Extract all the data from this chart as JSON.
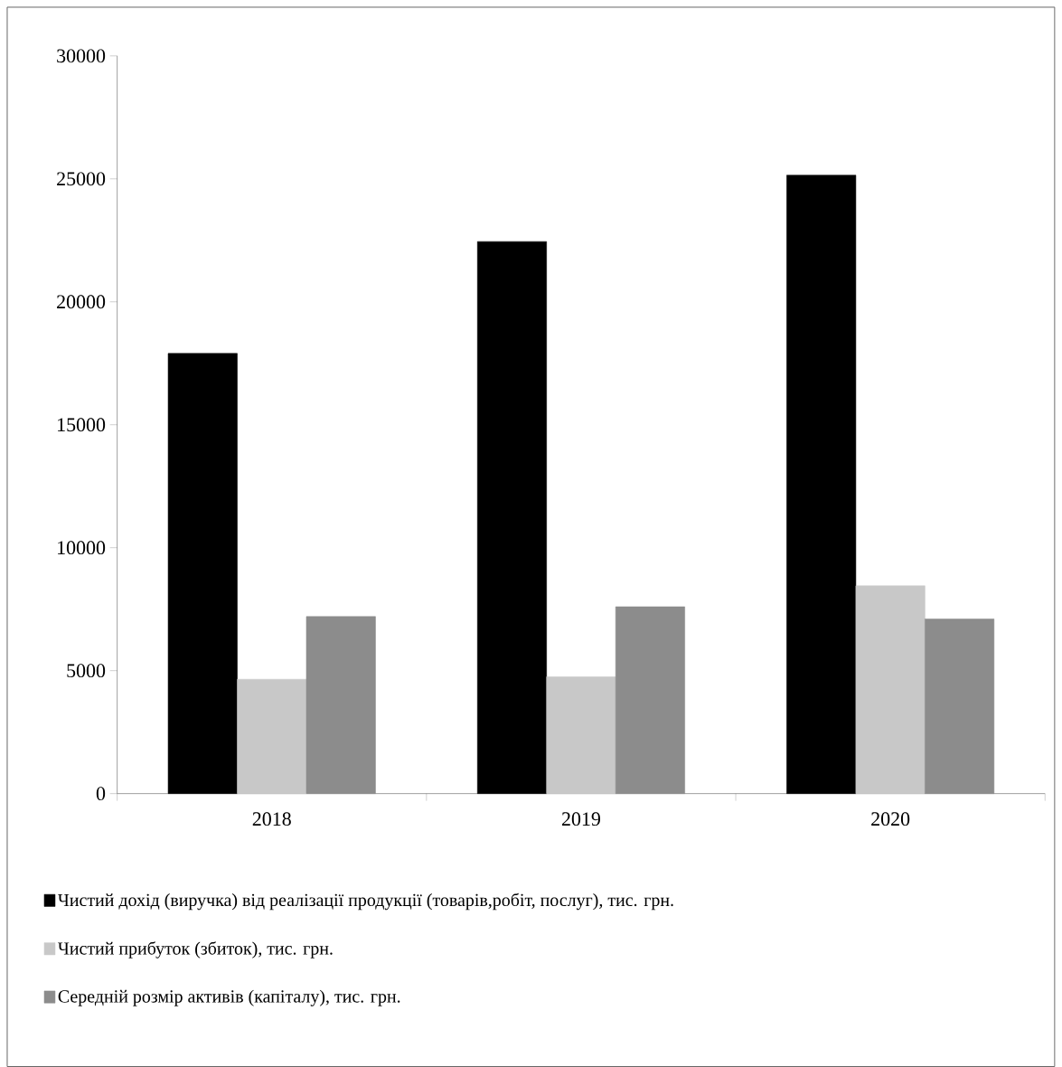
{
  "chart_data": {
    "type": "bar",
    "categories": [
      "2018",
      "2019",
      "2020"
    ],
    "series": [
      {
        "name": "Чистий дохід (виручка) від реалізації продукції (товарів,робіт, послуг), тис. грн.",
        "color": "#000000",
        "values": [
          17900,
          22450,
          25150
        ]
      },
      {
        "name": "Чистий прибуток (збиток), тис. грн.",
        "color": "#c8c8c8",
        "values": [
          4650,
          4750,
          8450
        ]
      },
      {
        "name": "Середній розмір активів (капіталу), тис. грн.",
        "color": "#8c8c8c",
        "values": [
          7200,
          7600,
          7100
        ]
      }
    ],
    "ylim": [
      0,
      30000
    ],
    "yticks": [
      0,
      5000,
      10000,
      15000,
      20000,
      25000,
      30000
    ],
    "grid": false,
    "legend": "bottom"
  }
}
